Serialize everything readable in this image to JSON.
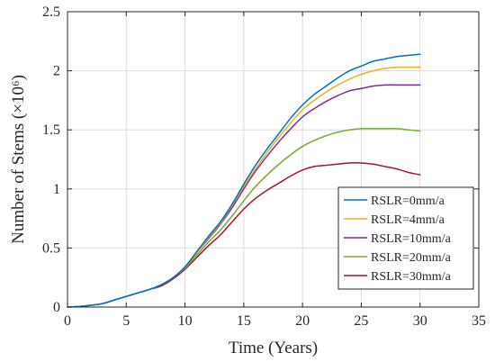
{
  "chart_data": {
    "type": "line",
    "xlabel": "Time (Years)",
    "ylabel": "Number of Stems (×10⁶)",
    "xlim": [
      0,
      35
    ],
    "ylim": [
      0,
      2.5
    ],
    "xticks": [
      0,
      5,
      10,
      15,
      20,
      25,
      30,
      35
    ],
    "yticks": [
      0,
      0.5,
      1,
      1.5,
      2,
      2.5
    ],
    "xtick_labels": [
      "0",
      "5",
      "10",
      "15",
      "20",
      "25",
      "30",
      "35"
    ],
    "ytick_labels": [
      "0",
      "0.5",
      "1",
      "1.5",
      "2",
      "2.5"
    ],
    "grid": true,
    "legend_position": "lower-right",
    "x": [
      0,
      1,
      2,
      3,
      4,
      5,
      6,
      7,
      8,
      9,
      10,
      11,
      12,
      13,
      14,
      15,
      16,
      17,
      18,
      19,
      20,
      21,
      22,
      23,
      24,
      25,
      26,
      27,
      28,
      29,
      30
    ],
    "series": [
      {
        "name": "RSLR=0mm/a",
        "color": "#0072BD",
        "values": [
          0,
          0.005,
          0.015,
          0.03,
          0.06,
          0.09,
          0.12,
          0.15,
          0.19,
          0.25,
          0.34,
          0.47,
          0.6,
          0.72,
          0.87,
          1.04,
          1.2,
          1.34,
          1.47,
          1.6,
          1.71,
          1.8,
          1.87,
          1.94,
          2.0,
          2.04,
          2.08,
          2.1,
          2.12,
          2.13,
          2.14
        ]
      },
      {
        "name": "RSLR=4mm/a",
        "color": "#EDB120",
        "values": [
          0,
          0.005,
          0.015,
          0.03,
          0.06,
          0.09,
          0.12,
          0.15,
          0.19,
          0.25,
          0.34,
          0.46,
          0.59,
          0.71,
          0.86,
          1.02,
          1.17,
          1.31,
          1.44,
          1.56,
          1.67,
          1.75,
          1.82,
          1.88,
          1.93,
          1.97,
          2.0,
          2.02,
          2.03,
          2.03,
          2.03
        ]
      },
      {
        "name": "RSLR=10mm/a",
        "color": "#7E2F8E",
        "values": [
          0,
          0.005,
          0.015,
          0.03,
          0.06,
          0.09,
          0.12,
          0.15,
          0.19,
          0.25,
          0.34,
          0.46,
          0.58,
          0.7,
          0.84,
          1.0,
          1.15,
          1.28,
          1.4,
          1.51,
          1.61,
          1.68,
          1.74,
          1.79,
          1.83,
          1.85,
          1.87,
          1.88,
          1.88,
          1.88,
          1.88
        ]
      },
      {
        "name": "RSLR=20mm/a",
        "color": "#77AC30",
        "values": [
          0,
          0.005,
          0.015,
          0.03,
          0.06,
          0.09,
          0.12,
          0.15,
          0.19,
          0.25,
          0.33,
          0.44,
          0.55,
          0.65,
          0.77,
          0.9,
          1.02,
          1.12,
          1.21,
          1.29,
          1.36,
          1.41,
          1.45,
          1.48,
          1.5,
          1.51,
          1.51,
          1.51,
          1.51,
          1.5,
          1.49
        ]
      },
      {
        "name": "RSLR=30mm/a",
        "color": "#A2142F",
        "values": [
          0,
          0.005,
          0.015,
          0.03,
          0.06,
          0.09,
          0.12,
          0.15,
          0.18,
          0.24,
          0.32,
          0.42,
          0.52,
          0.61,
          0.72,
          0.83,
          0.92,
          0.99,
          1.05,
          1.11,
          1.16,
          1.19,
          1.2,
          1.21,
          1.22,
          1.22,
          1.21,
          1.19,
          1.17,
          1.14,
          1.12
        ]
      }
    ]
  }
}
